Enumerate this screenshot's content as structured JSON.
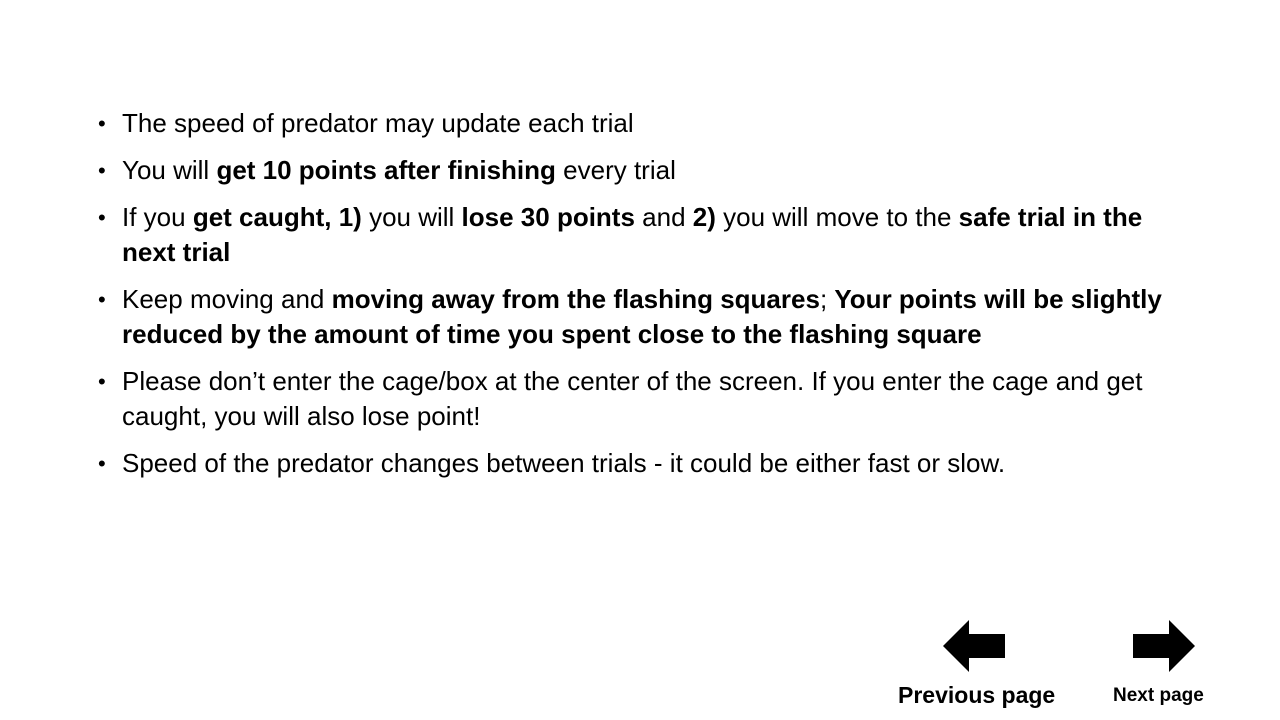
{
  "instructions": [
    {
      "segments": [
        {
          "text": "The speed of predator may update each trial",
          "bold": false
        }
      ]
    },
    {
      "segments": [
        {
          "text": "You will ",
          "bold": false
        },
        {
          "text": "get 10 points after finishing",
          "bold": true
        },
        {
          "text": " every trial",
          "bold": false
        }
      ]
    },
    {
      "segments": [
        {
          "text": "If you ",
          "bold": false
        },
        {
          "text": "get caught, 1)",
          "bold": true
        },
        {
          "text": " you will ",
          "bold": false
        },
        {
          "text": "lose 30 points",
          "bold": true
        },
        {
          "text": " and ",
          "bold": false
        },
        {
          "text": "2)",
          "bold": true
        },
        {
          "text": " you will move to the ",
          "bold": false
        },
        {
          "text": "safe trial in the next trial",
          "bold": true
        }
      ]
    },
    {
      "segments": [
        {
          "text": "Keep moving and ",
          "bold": false
        },
        {
          "text": "moving away from the flashing squares",
          "bold": true
        },
        {
          "text": "; ",
          "bold": false
        },
        {
          "text": "Your points will be slightly reduced by the amount of time you spent close to the flashing square",
          "bold": true
        }
      ]
    },
    {
      "segments": [
        {
          "text": "Please don’t enter the cage/box at the center of the screen. If you enter the cage and get caught, you will also lose point!",
          "bold": false
        }
      ]
    },
    {
      "segments": [
        {
          "text": "Speed of the predator changes between trials - it could be either fast or slow.",
          "bold": false
        }
      ]
    }
  ],
  "navigation": {
    "previous_label": "Previous page",
    "next_label": "Next page",
    "previous_icon": "arrow-left-icon",
    "next_icon": "arrow-right-icon",
    "arrow_color": "#000000"
  },
  "bullet_glyph": "•"
}
